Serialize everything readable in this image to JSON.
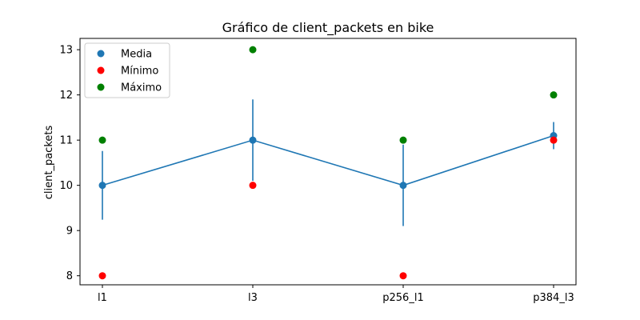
{
  "chart_data": {
    "type": "line",
    "title": "Gráfico de client_packets en bike",
    "xlabel": "",
    "ylabel": "client_packets",
    "categories": [
      "l1",
      "l3",
      "p256_l1",
      "p384_l3"
    ],
    "ylim": [
      7.8,
      13.25
    ],
    "yticks": [
      8,
      9,
      10,
      11,
      12,
      13
    ],
    "grid": false,
    "legend_position": "top-left",
    "series": [
      {
        "name": "Media",
        "color": "#1f77b4",
        "values": [
          10,
          11,
          10,
          11.1
        ],
        "error": [
          0.76,
          0.9,
          0.9,
          0.3
        ],
        "line": true
      },
      {
        "name": "Mínimo",
        "color": "#ff0000",
        "values": [
          8,
          10,
          8,
          11
        ],
        "line": false
      },
      {
        "name": "Máximo",
        "color": "#008000",
        "values": [
          11,
          13,
          11,
          12
        ],
        "line": false
      }
    ]
  }
}
